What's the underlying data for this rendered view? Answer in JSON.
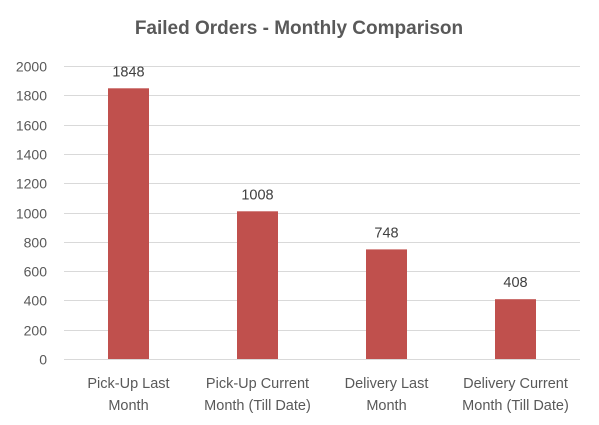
{
  "chart_data": {
    "type": "bar",
    "title": "Failed Orders - Monthly Comparison",
    "categories": [
      [
        "Pick-Up Last",
        "Month"
      ],
      [
        "Pick-Up Current",
        "Month (Till Date)"
      ],
      [
        "Delivery Last",
        "Month"
      ],
      [
        "Delivery Current",
        "Month (Till Date)"
      ]
    ],
    "values": [
      1848,
      1008,
      748,
      408
    ],
    "data_labels": [
      "1848",
      "1008",
      "748",
      "408"
    ],
    "ylim": [
      0,
      2000
    ],
    "yticks": [
      0,
      200,
      400,
      600,
      800,
      1000,
      1200,
      1400,
      1600,
      1800,
      2000
    ],
    "ytick_labels": [
      "0",
      "200",
      "400",
      "600",
      "800",
      "1000",
      "1200",
      "1400",
      "1600",
      "1800",
      "2000"
    ],
    "xlabel": "",
    "ylabel": "",
    "grid": true,
    "legend": "none",
    "colors": {
      "bar": "#C0504D",
      "grid": "#D9D9D9",
      "text": "#595959"
    }
  }
}
